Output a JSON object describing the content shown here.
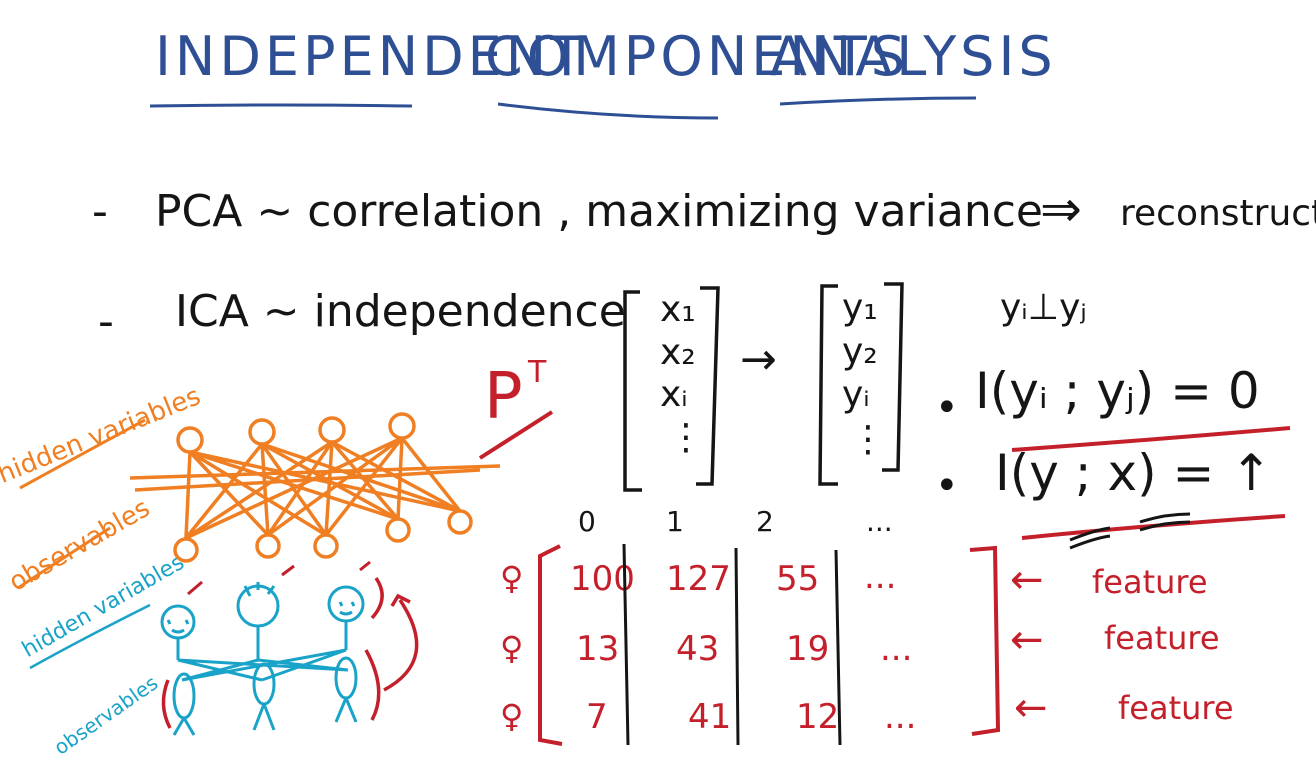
{
  "title": {
    "words": [
      "INDEPENDENT",
      "COMPONENTS",
      "ANALYSIS"
    ]
  },
  "bullets": {
    "pca_dash": "-",
    "pca_text": "PCA ~ correlation , maximizing variance",
    "pca_arrow": "⇒",
    "pca_result": "reconstruction",
    "ica_dash": "-",
    "ica_text": "ICA ~ independence"
  },
  "transform": {
    "label": "P",
    "superscript": "T",
    "x_vector": [
      "x₁",
      "x₂",
      "xᵢ",
      "⋮"
    ],
    "arrow": "→",
    "y_vector": [
      "y₁",
      "y₂",
      "yᵢ",
      "⋮"
    ],
    "independence_relation": "yᵢ⊥yⱼ",
    "equation_1": "I(yᵢ ; yⱼ) = 0",
    "equation_2": "I(y ; x) = ↑",
    "bullet": "•"
  },
  "network": {
    "orange_top_label": "hidden variables",
    "orange_bottom_label": "observables",
    "teal_top_label": "hidden variables",
    "teal_bottom_label": "observables"
  },
  "matrix": {
    "column_headers": [
      "0",
      "1",
      "2",
      "..."
    ],
    "row_markers": [
      "♀",
      "♀",
      "♀"
    ],
    "rows": [
      [
        "100",
        "127",
        "55",
        "..."
      ],
      [
        "13",
        "43",
        "19",
        "..."
      ],
      [
        "7",
        "41",
        "12",
        "..."
      ]
    ],
    "arrow": "←",
    "row_labels": [
      "feature",
      "feature",
      "feature"
    ]
  },
  "colors": {
    "blue": "#2f4f95",
    "black": "#151515",
    "red": "#c4202b",
    "orange": "#ef7f22",
    "teal": "#1aa3c8"
  }
}
